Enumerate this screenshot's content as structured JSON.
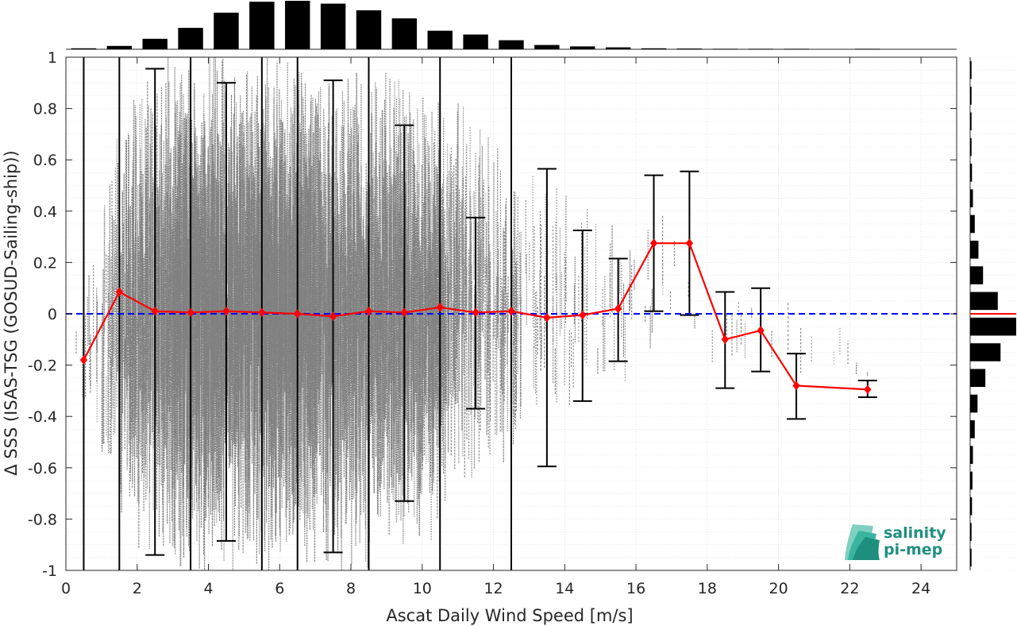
{
  "chart_data": [
    {
      "type": "scatter",
      "name": "main",
      "xlabel": "Ascat Daily Wind Speed [m/s]",
      "ylabel": "Δ SSS (ISAS-TSG (GOSUD-Sailing-ship))",
      "xlim": [
        0,
        25
      ],
      "ylim": [
        -1,
        1
      ],
      "xticks": [
        "0",
        "2",
        "4",
        "6",
        "8",
        "10",
        "12",
        "14",
        "16",
        "18",
        "20",
        "22",
        "24"
      ],
      "yticks": [
        "-1",
        "-0.8",
        "-0.6",
        "-0.4",
        "-0.2",
        "0",
        "0.2",
        "0.4",
        "0.6",
        "0.8",
        "1"
      ],
      "grid": true,
      "reference_line": {
        "y": 0,
        "style": "dashed",
        "color": "#0000ff"
      },
      "scatter_color": "#808080",
      "scatter_envelope": {
        "x": [
          0.3,
          1,
          2,
          3,
          4,
          5,
          6,
          7,
          8,
          9,
          10,
          11,
          12,
          13,
          14,
          15,
          16,
          17,
          18,
          19,
          20,
          21,
          22,
          22.7
        ],
        "y_low": [
          -0.5,
          -0.9,
          -1,
          -1,
          -1,
          -1,
          -1,
          -1,
          -1,
          -1,
          -1,
          -0.8,
          -0.9,
          -0.7,
          -0.75,
          -0.6,
          -0.4,
          -0.35,
          -0.35,
          -0.3,
          -0.45,
          -0.4,
          -0.35,
          -0.3
        ],
        "y_high": [
          0.1,
          0.7,
          1,
          1,
          1,
          1,
          1,
          1,
          1,
          1,
          1,
          0.95,
          0.9,
          0.8,
          0.75,
          0.6,
          0.5,
          0.65,
          0.3,
          0.2,
          0.3,
          0.2,
          0.0,
          -0.2
        ],
        "density": [
          0.1,
          0.4,
          0.8,
          1,
          1,
          1,
          1,
          1,
          0.95,
          0.9,
          0.8,
          0.6,
          0.45,
          0.3,
          0.2,
          0.14,
          0.08,
          0.05,
          0.03,
          0.03,
          0.02,
          0.02,
          0.01,
          0.01
        ]
      },
      "series": [
        {
          "color": "#ff0000",
          "x": [
            0.5,
            1.5,
            2.5,
            3.5,
            4.5,
            5.5,
            6.5,
            7.5,
            8.5,
            9.5,
            10.5,
            11.5,
            12.5,
            13.5,
            14.5,
            15.5,
            16.5,
            17.5,
            18.5,
            19.5,
            20.5,
            22.5
          ],
          "mean": [
            -0.18,
            0.085,
            0.01,
            0.005,
            0.01,
            0.005,
            0.0,
            -0.01,
            0.01,
            0.005,
            0.025,
            0.005,
            0.01,
            -0.015,
            -0.005,
            0.02,
            0.275,
            0.275,
            -0.1,
            -0.065,
            -0.28,
            -0.295
          ],
          "err_low": [
            -1,
            -1,
            -0.94,
            -1,
            -0.885,
            -1,
            -1,
            -0.93,
            -1,
            -0.73,
            -1,
            -0.37,
            -1,
            -0.595,
            -0.34,
            -0.185,
            0.01,
            -0.005,
            -0.29,
            -0.225,
            -0.41,
            -0.325
          ],
          "err_high": [
            1,
            1,
            0.955,
            1,
            0.9,
            1,
            1,
            0.91,
            1,
            0.735,
            1,
            0.375,
            1,
            0.565,
            0.325,
            0.215,
            0.54,
            0.555,
            0.085,
            0.1,
            -0.155,
            -0.26
          ]
        }
      ]
    },
    {
      "type": "bar",
      "name": "top-histogram",
      "x": [
        0.5,
        1.5,
        2.5,
        3.5,
        4.5,
        5.5,
        6.5,
        7.5,
        8.5,
        9.5,
        10.5,
        11.5,
        12.5,
        13.5,
        14.5,
        15.5,
        16.5,
        17.5,
        18.5,
        19.5,
        20.5,
        22.5
      ],
      "values": [
        0.02,
        0.07,
        0.22,
        0.45,
        0.77,
        1.0,
        1.02,
        0.96,
        0.82,
        0.65,
        0.39,
        0.31,
        0.19,
        0.09,
        0.06,
        0.04,
        0.02,
        0.015,
        0.01,
        0.01,
        0.01,
        0.01
      ]
    },
    {
      "type": "bar",
      "name": "right-histogram",
      "orientation": "horizontal",
      "bins": [
        -0.95,
        -0.85,
        -0.75,
        -0.65,
        -0.55,
        -0.45,
        -0.35,
        -0.25,
        -0.15,
        -0.05,
        0.05,
        0.15,
        0.25,
        0.35,
        0.45,
        0.55,
        0.65,
        0.75,
        0.85,
        0.95
      ],
      "values": [
        0.03,
        0.03,
        0.04,
        0.05,
        0.06,
        0.1,
        0.16,
        0.33,
        0.66,
        1.0,
        0.6,
        0.28,
        0.18,
        0.1,
        0.06,
        0.04,
        0.03,
        0.03,
        0.03,
        0.03
      ],
      "mean_line": {
        "y": 0,
        "color": "#ff0000"
      }
    }
  ],
  "logo": {
    "line1": "salinity",
    "line2": "pi-mep",
    "color": "#1f8f80"
  }
}
